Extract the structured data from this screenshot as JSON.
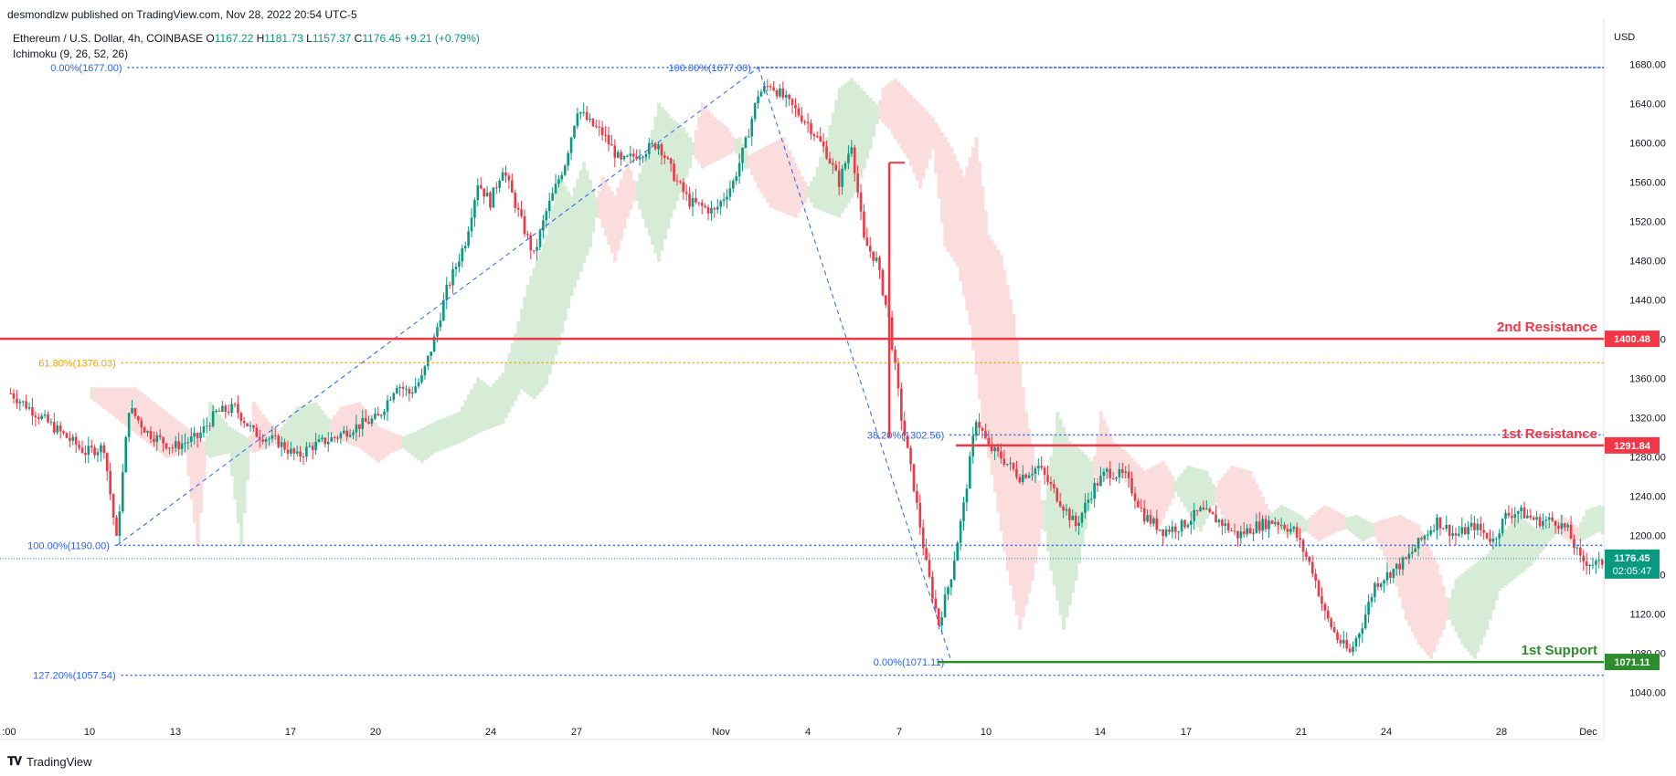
{
  "header": {
    "published": "desmondlzw published on TradingView.com, Nov 28, 2022 20:54 UTC-5"
  },
  "legend": {
    "symbol": "Ethereum / U.S. Dollar, 4h, COINBASE",
    "o_label": "O",
    "o": "1167.22",
    "h_label": "H",
    "h": "1181.73",
    "l_label": "L",
    "l": "1157.37",
    "c_label": "C",
    "c": "1176.45",
    "change": "+9.21 (+0.79%)",
    "indicator": "Ichimoku (9, 26, 52, 26)"
  },
  "footer": {
    "brand": "TradingView"
  },
  "colors": {
    "up": "#089981",
    "down": "#f23645",
    "fib": "#2962ff",
    "fib_orange": "#f0a30a",
    "resistance": "#f23645",
    "support": "#2e8b2e",
    "cloud_green": "#a5d6a7",
    "cloud_red": "#f7b5b5"
  },
  "chart_data": {
    "type": "candlestick",
    "currency_label": "USD",
    "ylim": [
      1020,
      1690
    ],
    "y_ticks": [
      "1680.00",
      "1640.00",
      "1600.00",
      "1560.00",
      "1520.00",
      "1480.00",
      "1440.00",
      "1400.00",
      "1360.00",
      "1320.00",
      "1280.00",
      "1240.00",
      "1200.00",
      "1160.00",
      "1120.00",
      "1080.00",
      "1040.00"
    ],
    "x_ticks": [
      ":00",
      "10",
      "13",
      "17",
      "20",
      "24",
      "27",
      "Nov",
      "4",
      "7",
      "10",
      "14",
      "17",
      "21",
      "24",
      "28",
      "Dec"
    ],
    "price_anchors": [
      [
        0,
        1345
      ],
      [
        10,
        1320
      ],
      [
        18,
        1300
      ],
      [
        24,
        1285
      ],
      [
        30,
        1290
      ],
      [
        34,
        1195
      ],
      [
        38,
        1330
      ],
      [
        44,
        1305
      ],
      [
        52,
        1290
      ],
      [
        60,
        1300
      ],
      [
        66,
        1325
      ],
      [
        72,
        1330
      ],
      [
        78,
        1305
      ],
      [
        86,
        1295
      ],
      [
        92,
        1280
      ],
      [
        96,
        1290
      ],
      [
        104,
        1300
      ],
      [
        110,
        1310
      ],
      [
        118,
        1320
      ],
      [
        124,
        1355
      ],
      [
        128,
        1345
      ],
      [
        132,
        1360
      ],
      [
        136,
        1400
      ],
      [
        140,
        1450
      ],
      [
        146,
        1500
      ],
      [
        150,
        1560
      ],
      [
        154,
        1540
      ],
      [
        158,
        1575
      ],
      [
        164,
        1520
      ],
      [
        168,
        1485
      ],
      [
        172,
        1530
      ],
      [
        178,
        1580
      ],
      [
        182,
        1635
      ],
      [
        186,
        1620
      ],
      [
        190,
        1610
      ],
      [
        196,
        1580
      ],
      [
        202,
        1590
      ],
      [
        208,
        1600
      ],
      [
        214,
        1560
      ],
      [
        218,
        1540
      ],
      [
        226,
        1530
      ],
      [
        232,
        1560
      ],
      [
        236,
        1600
      ],
      [
        240,
        1650
      ],
      [
        244,
        1660
      ],
      [
        250,
        1640
      ],
      [
        256,
        1620
      ],
      [
        262,
        1590
      ],
      [
        266,
        1560
      ],
      [
        270,
        1600
      ],
      [
        274,
        1500
      ],
      [
        278,
        1480
      ],
      [
        282,
        1420
      ],
      [
        286,
        1320
      ],
      [
        290,
        1250
      ],
      [
        294,
        1170
      ],
      [
        298,
        1110
      ],
      [
        302,
        1160
      ],
      [
        306,
        1230
      ],
      [
        310,
        1320
      ],
      [
        314,
        1290
      ],
      [
        318,
        1280
      ],
      [
        324,
        1260
      ],
      [
        330,
        1270
      ],
      [
        336,
        1240
      ],
      [
        342,
        1210
      ],
      [
        348,
        1250
      ],
      [
        352,
        1265
      ],
      [
        358,
        1260
      ],
      [
        364,
        1220
      ],
      [
        370,
        1205
      ],
      [
        376,
        1210
      ],
      [
        382,
        1225
      ],
      [
        388,
        1215
      ],
      [
        394,
        1200
      ],
      [
        400,
        1210
      ],
      [
        406,
        1215
      ],
      [
        412,
        1205
      ],
      [
        418,
        1165
      ],
      [
        422,
        1120
      ],
      [
        426,
        1095
      ],
      [
        430,
        1080
      ],
      [
        434,
        1110
      ],
      [
        438,
        1150
      ],
      [
        442,
        1160
      ],
      [
        448,
        1175
      ],
      [
        454,
        1200
      ],
      [
        458,
        1215
      ],
      [
        464,
        1200
      ],
      [
        470,
        1210
      ],
      [
        476,
        1195
      ],
      [
        480,
        1220
      ],
      [
        484,
        1225
      ],
      [
        490,
        1215
      ],
      [
        496,
        1215
      ],
      [
        500,
        1205
      ],
      [
        504,
        1175
      ],
      [
        510,
        1170
      ],
      [
        512,
        1176
      ]
    ],
    "fibonacci_1": {
      "levels": [
        {
          "label": "0.00%(1677.00)",
          "price": 1677.0
        },
        {
          "label": "61.80%(1376.03)",
          "price": 1376.03
        },
        {
          "label": "100.00%(1190.00)",
          "price": 1190.0
        },
        {
          "label": "127.20%(1057.54)",
          "price": 1057.54
        }
      ]
    },
    "fibonacci_2": {
      "levels": [
        {
          "label": "100.00%(1677.00)",
          "price": 1677.0
        },
        {
          "label": "38.20%(1302.56)",
          "price": 1302.56
        },
        {
          "label": "0.00%(1071.11)",
          "price": 1071.11
        }
      ]
    },
    "horizontal_levels": [
      {
        "name": "2nd Resistance",
        "price": 1400.48,
        "label": "1400.48",
        "kind": "resistance"
      },
      {
        "name": "1st Resistance",
        "price": 1291.84,
        "label": "1291.84",
        "kind": "resistance"
      },
      {
        "name": "1st Support",
        "price": 1071.11,
        "label": "1071.11",
        "kind": "support"
      }
    ],
    "last_price": {
      "price": 1176.45,
      "label": "1176.45",
      "timer": "02:05:47"
    }
  }
}
